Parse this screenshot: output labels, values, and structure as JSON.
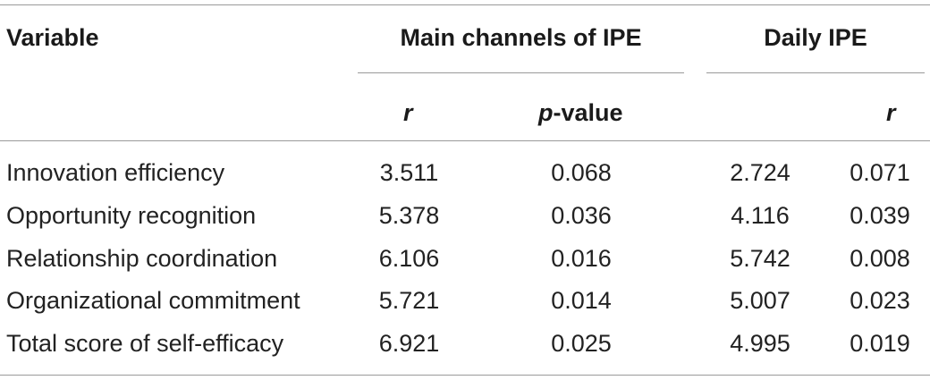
{
  "table": {
    "header": {
      "variable": "Variable",
      "group1": "Main channels of IPE",
      "group2": "Daily IPE",
      "col_r1": "r",
      "col_p_italic": "p",
      "col_p_rest": "-value",
      "col_r2": "r"
    },
    "rows": [
      {
        "variable": "Innovation efficiency",
        "c1": "3.511",
        "c2": "0.068",
        "c3": "2.724",
        "c4": "0.071"
      },
      {
        "variable": "Opportunity recognition",
        "c1": "5.378",
        "c2": "0.036",
        "c3": "4.116",
        "c4": "0.039"
      },
      {
        "variable": "Relationship coordination",
        "c1": "6.106",
        "c2": "0.016",
        "c3": "5.742",
        "c4": "0.008"
      },
      {
        "variable": "Organizational commitment",
        "c1": "5.721",
        "c2": "0.014",
        "c3": "5.007",
        "c4": "0.023"
      },
      {
        "variable": "Total score of self-efficacy",
        "c1": "6.921",
        "c2": "0.025",
        "c3": "4.995",
        "c4": "0.019"
      }
    ]
  }
}
